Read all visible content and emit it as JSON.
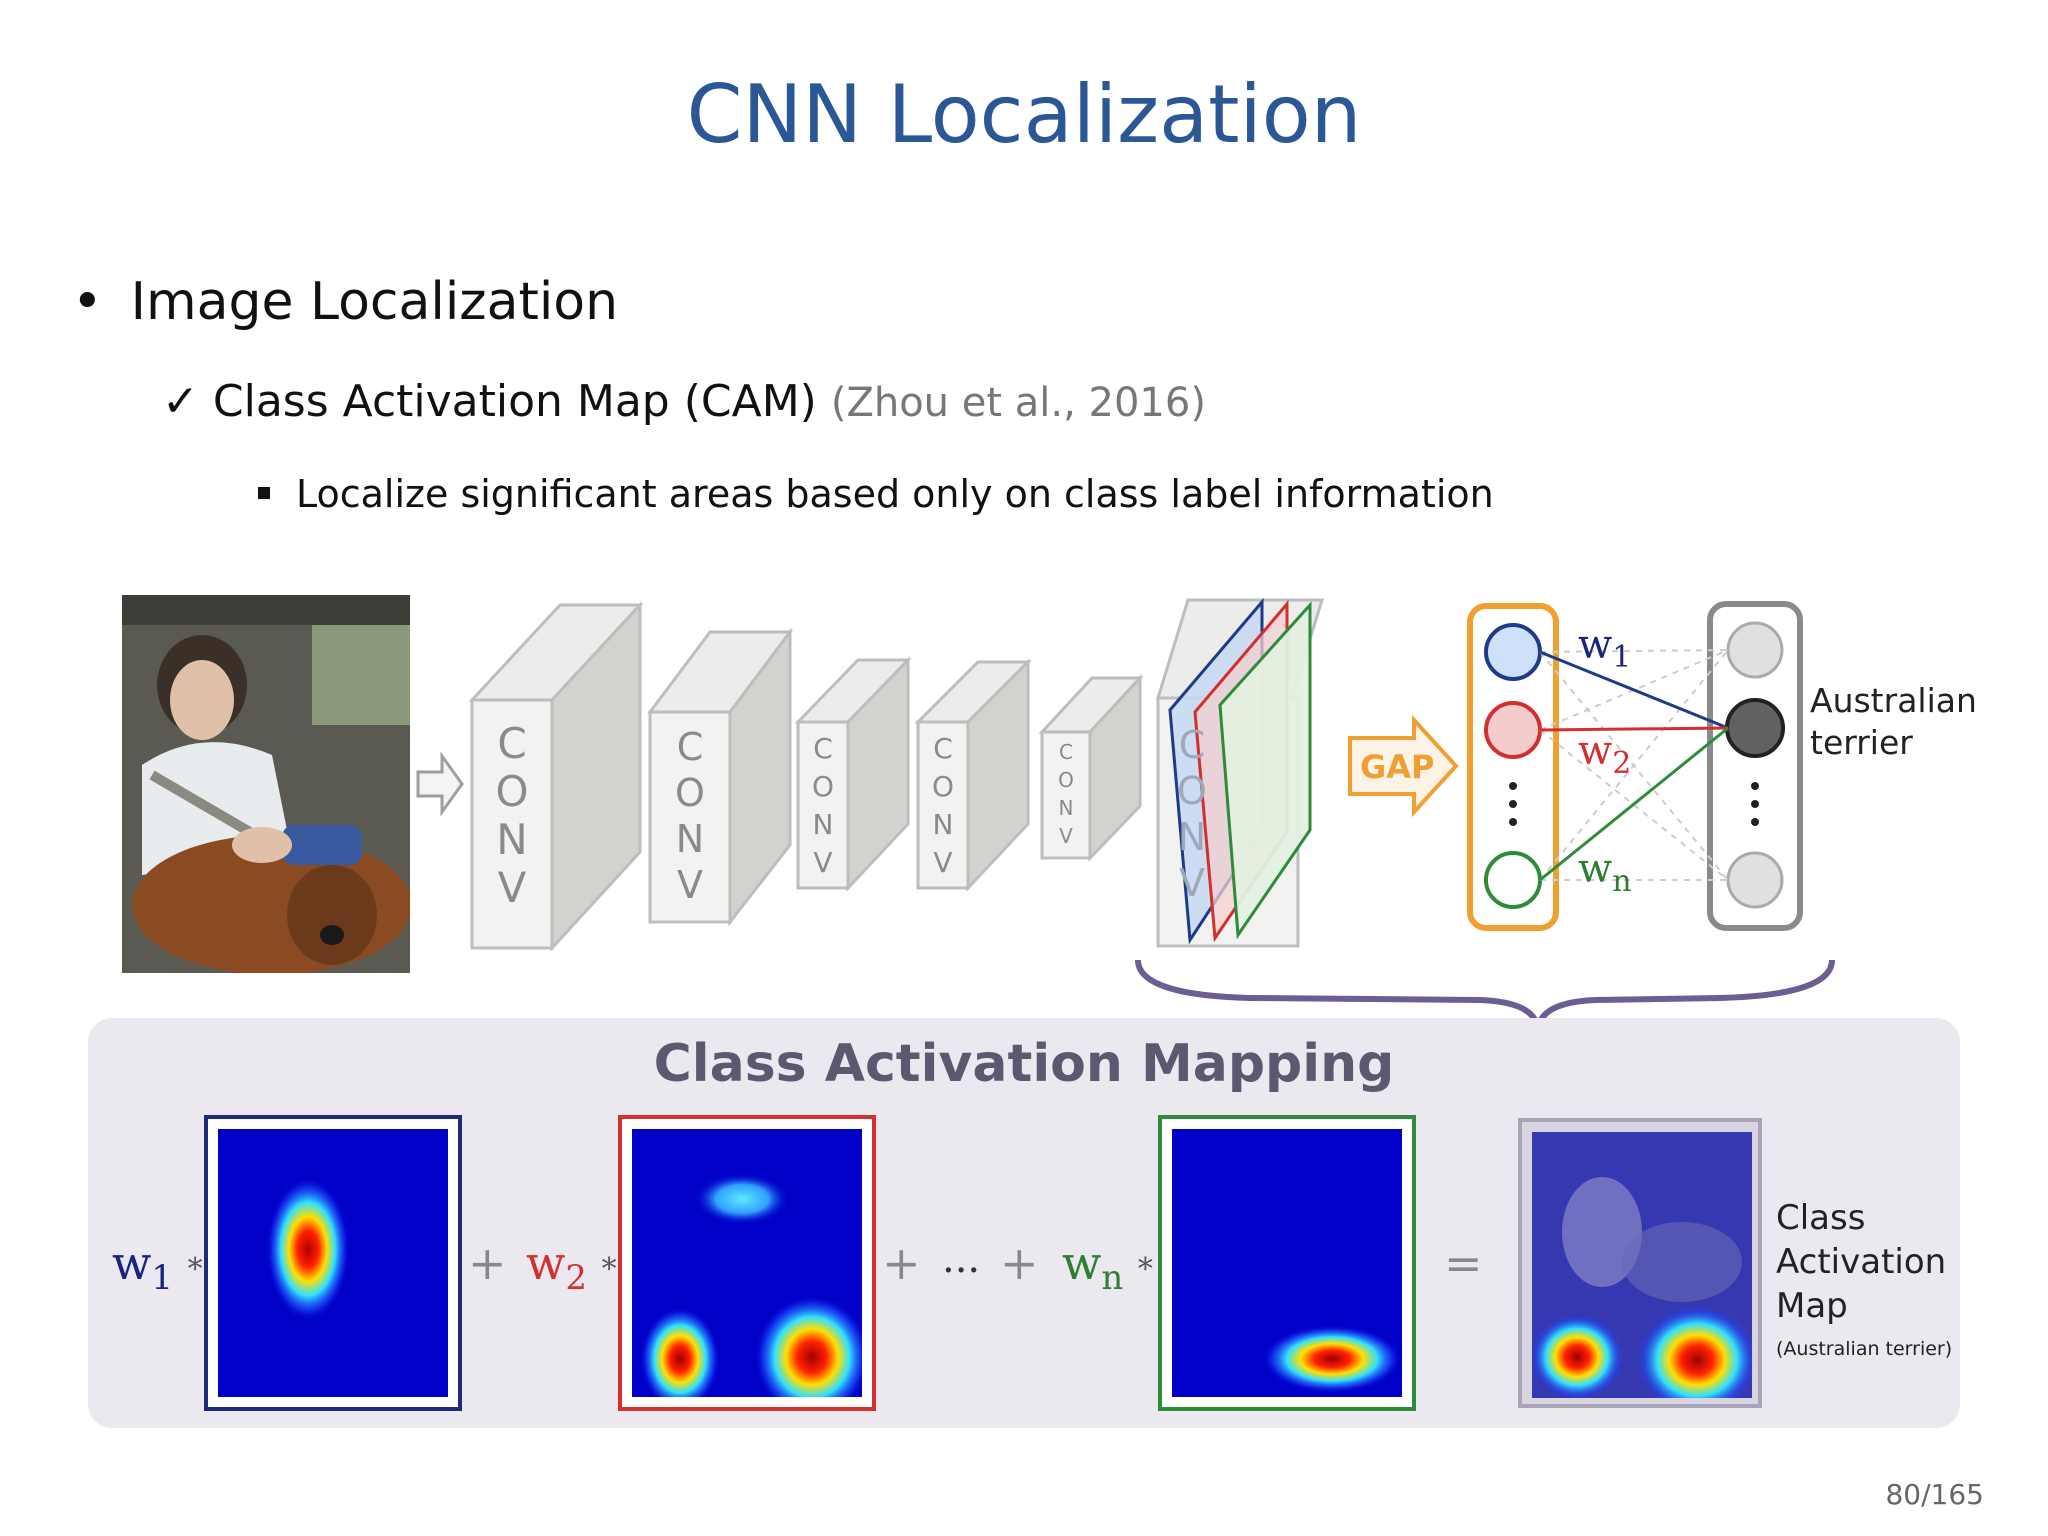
{
  "slide": {
    "title": "CNN Localization",
    "bullet1": "Image Localization",
    "bullet2_check": "✓",
    "bullet2": "Class Activation Map (CAM)",
    "bullet2_citation": "(Zhou et al., 2016)",
    "bullet3": "Localize significant areas based only on class label information",
    "page_number": "80/165"
  },
  "diagram": {
    "conv_layers": [
      {
        "letters": [
          "C",
          "O",
          "N",
          "V"
        ]
      },
      {
        "letters": [
          "C",
          "O",
          "N",
          "V"
        ]
      },
      {
        "letters": [
          "C",
          "O",
          "N",
          "V"
        ]
      },
      {
        "letters": [
          "C",
          "O",
          "N",
          "V"
        ]
      },
      {
        "letters": [
          "C",
          "O",
          "N",
          "V"
        ]
      },
      {
        "letters": [
          "C",
          "O",
          "N",
          "V"
        ]
      }
    ],
    "gap_label": "GAP",
    "weights": [
      {
        "symbol": "w",
        "sub": "1",
        "color": "#1a237e"
      },
      {
        "symbol": "w",
        "sub": "2",
        "color": "#d32f2f"
      },
      {
        "symbol": "w",
        "sub": "n",
        "color": "#2e7d32"
      }
    ],
    "output_label_line1": "Australian",
    "output_label_line2": "terrier",
    "colors": {
      "orange": "#f0a030",
      "blue": "#1e3a8a",
      "red": "#d32f2f",
      "green": "#2e8b3a",
      "gray": "#9e9e9e"
    }
  },
  "cam": {
    "title": "Class Activation Mapping",
    "term1": {
      "symbol": "w",
      "sub": "1",
      "op": "*"
    },
    "plus1": "+",
    "term2": {
      "symbol": "w",
      "sub": "2",
      "op": "*"
    },
    "plus2": "+",
    "ellipsis": "...",
    "plus3": "+",
    "term3": {
      "symbol": "w",
      "sub": "n",
      "op": "*"
    },
    "equals": "=",
    "result_line1": "Class",
    "result_line2": "Activation",
    "result_line3": "Map",
    "result_note": "(Australian terrier)"
  }
}
